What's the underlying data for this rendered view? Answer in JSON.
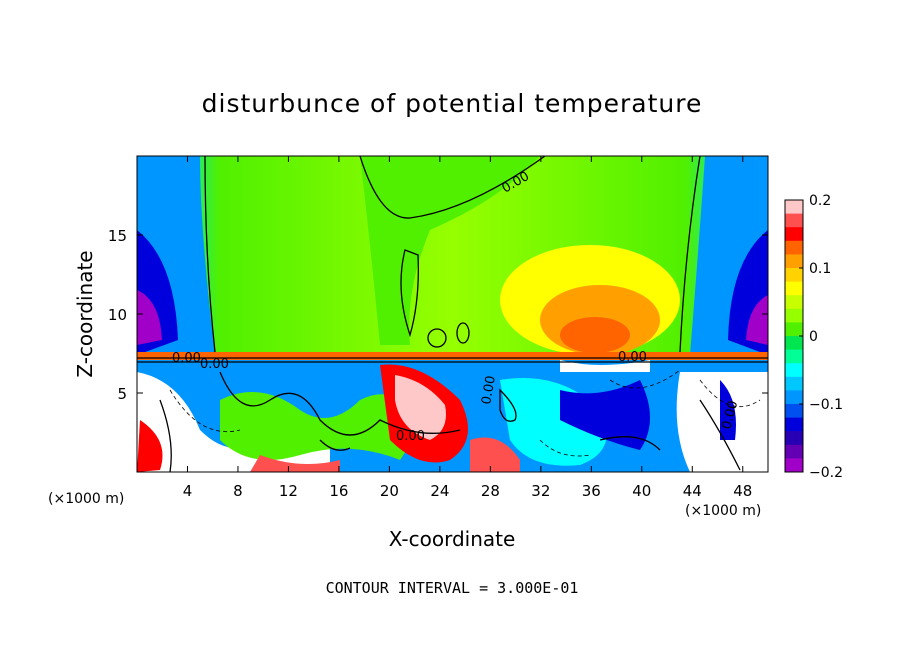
{
  "chart_data": {
    "type": "heatmap",
    "title": "disturbunce of potential temperature",
    "xlabel": "X-coordinate",
    "ylabel": "Z-coordinate",
    "x_unit_left": "(×1000 m)",
    "x_unit_right": "(×1000 m)",
    "xlim": [
      0,
      50
    ],
    "ylim": [
      0,
      20
    ],
    "x_ticks": [
      4,
      8,
      12,
      16,
      20,
      24,
      28,
      32,
      36,
      40,
      44,
      48
    ],
    "x_tick_labels": [
      "4",
      "8",
      "12",
      "16",
      "20",
      "24",
      "28",
      "32",
      "36",
      "40",
      "44",
      "48"
    ],
    "y_ticks": [
      5,
      10,
      15
    ],
    "y_tick_labels": [
      "5",
      "10",
      "15"
    ],
    "colorbar": {
      "range": [
        -0.2,
        0.2
      ],
      "ticks": [
        0.2,
        0.1,
        0,
        -0.1,
        -0.2
      ],
      "tick_labels": [
        "0.2",
        "0.1",
        "0",
        "−0.1",
        "−0.2"
      ],
      "colors": [
        "#ffc8c8",
        "#ff5050",
        "#ff0000",
        "#ff6400",
        "#ffa000",
        "#ffd200",
        "#ffff00",
        "#c8ff00",
        "#96ff00",
        "#50f000",
        "#00e650",
        "#00ff96",
        "#00ffff",
        "#00c8ff",
        "#0096ff",
        "#0050f0",
        "#0000dc",
        "#2800b4",
        "#6400b4",
        "#a000c8"
      ]
    },
    "contour_labels": [
      "0.00",
      "0.00",
      "0.00",
      "0.00",
      "0.00",
      "0.00",
      "0.00"
    ],
    "contour_interval_text": "CONTOUR INTERVAL = 3.000E-01",
    "grid": false
  }
}
